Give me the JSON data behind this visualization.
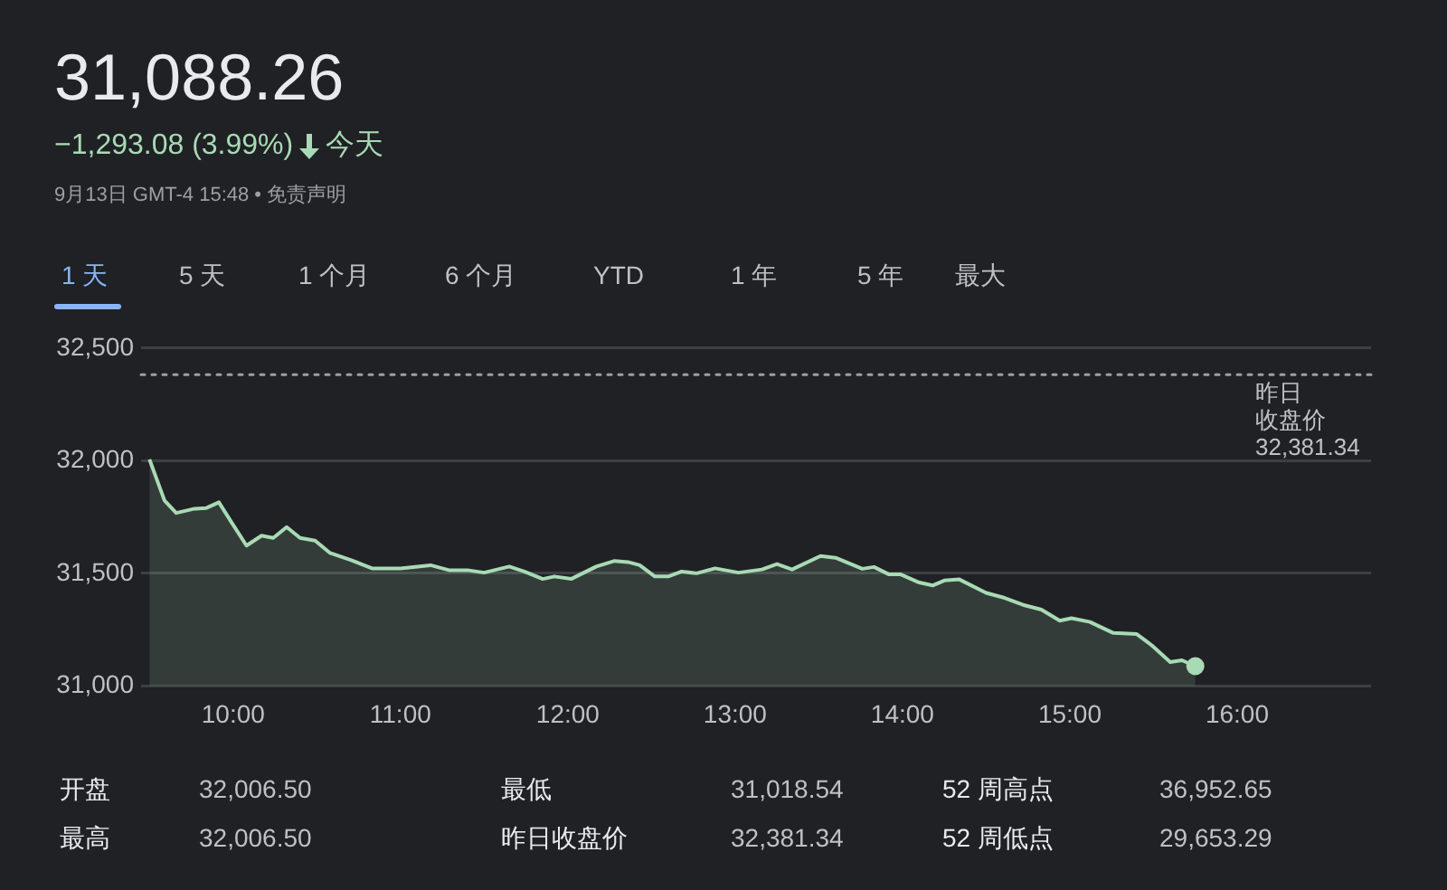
{
  "chart_data": {
    "type": "area",
    "title": "31,088.26",
    "subtitle": "−1,293.08 (3.99%) 今天",
    "annotations": [
      "9月13日 GMT-4 15:48 • 免责声明",
      "1 天",
      "5 天",
      "1 个月",
      "6 个月",
      "YTD",
      "1 年",
      "5 年",
      "最大",
      "开盘",
      "32,006.50",
      "最低",
      "31,018.54",
      "52 周高点",
      "36,952.65",
      "最高",
      "32,006.50",
      "昨日收盘价",
      "32,381.34",
      "52 周低点",
      "29,653.29"
    ],
    "x": [
      9.5,
      9.59,
      9.66,
      9.77,
      9.84,
      9.915,
      9.99,
      10.08,
      10.17,
      10.24,
      10.32,
      10.4,
      10.49,
      10.58,
      10.71,
      10.83,
      11.0,
      11.18,
      11.29,
      11.4,
      11.5,
      11.65,
      11.74,
      11.85,
      11.92,
      12.02,
      12.17,
      12.28,
      12.36,
      12.43,
      12.52,
      12.6,
      12.68,
      12.77,
      12.88,
      13.02,
      13.16,
      13.25,
      13.34,
      13.51,
      13.6,
      13.76,
      13.83,
      13.92,
      13.99,
      14.1,
      14.18,
      14.25,
      14.34,
      14.5,
      14.61,
      14.72,
      14.83,
      14.94,
      15.01,
      15.12,
      15.26,
      15.4,
      15.49,
      15.6,
      15.67,
      15.75
    ],
    "series": [
      {
        "color": "#a8dab5",
        "values": [
          32006,
          31823,
          31768,
          31787,
          31790,
          31815,
          31727,
          31623,
          31667,
          31657,
          31705,
          31657,
          31645,
          31590,
          31557,
          31522,
          31522,
          31536,
          31514,
          31514,
          31503,
          31530,
          31508,
          31475,
          31486,
          31475,
          31530,
          31555,
          31550,
          31536,
          31486,
          31486,
          31508,
          31500,
          31522,
          31503,
          31517,
          31541,
          31517,
          31577,
          31569,
          31520,
          31528,
          31495,
          31495,
          31459,
          31446,
          31468,
          31473,
          31413,
          31391,
          31360,
          31339,
          31290,
          31301,
          31284,
          31235,
          31230,
          31180,
          31106,
          31114,
          31088
        ]
      }
    ],
    "xlim": [
      9.45,
      16.8
    ],
    "xticks": [
      {
        "value": 10,
        "label": "10:00"
      },
      {
        "value": 11,
        "label": "11:00"
      },
      {
        "value": 12,
        "label": "12:00"
      },
      {
        "value": 13,
        "label": "13:00"
      },
      {
        "value": 14,
        "label": "14:00"
      },
      {
        "value": 15,
        "label": "15:00"
      },
      {
        "value": 16,
        "label": "16:00"
      }
    ],
    "ylim": [
      31000,
      32500
    ],
    "yticks": [
      {
        "value": 31000,
        "label": "31,000"
      },
      {
        "value": 31500,
        "label": "31,500"
      },
      {
        "value": 32000,
        "label": "32,000"
      },
      {
        "value": 32500,
        "label": "32,500"
      }
    ],
    "grid": "y",
    "legend": false,
    "ref_lines": [
      {
        "axis": "y",
        "value": 32381.34,
        "label": "昨日收盘价\n32,381.34",
        "line_style": "dotted",
        "color": "#9aa0a6"
      }
    ]
  }
}
